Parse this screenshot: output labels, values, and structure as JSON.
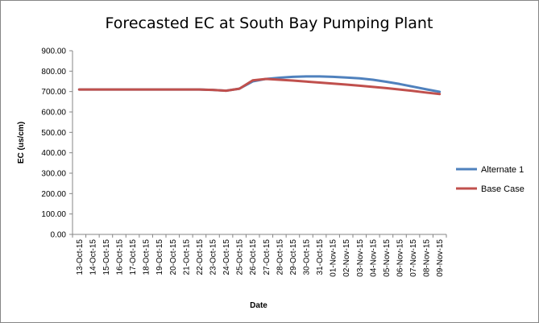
{
  "chart_data": {
    "type": "line",
    "title": "Forecasted EC at South Bay Pumping Plant",
    "xlabel": "Date",
    "ylabel": "EC (us/cm)",
    "ylim": [
      0,
      900
    ],
    "ytick_step": 100,
    "ytick_format": "0.00",
    "grid": false,
    "legend_position": "right",
    "categories": [
      "13-Oct-15",
      "14-Oct-15",
      "15-Oct-15",
      "16-Oct-15",
      "17-Oct-15",
      "18-Oct-15",
      "19-Oct-15",
      "20-Oct-15",
      "21-Oct-15",
      "22-Oct-15",
      "23-Oct-15",
      "24-Oct-15",
      "25-Oct-15",
      "26-Oct-15",
      "27-Oct-15",
      "28-Oct-15",
      "29-Oct-15",
      "30-Oct-15",
      "31-Oct-15",
      "01-Nov-15",
      "02-Nov-15",
      "03-Nov-15",
      "04-Nov-15",
      "05-Nov-15",
      "06-Nov-15",
      "07-Nov-15",
      "08-Nov-15",
      "09-Nov-15"
    ],
    "series": [
      {
        "name": "Alternate 1",
        "color": "#4F81BD",
        "values": [
          710,
          710,
          710,
          710,
          710,
          710,
          710,
          710,
          710,
          710,
          708,
          704,
          714,
          750,
          762,
          768,
          772,
          774,
          774,
          772,
          769,
          765,
          758,
          748,
          737,
          724,
          711,
          699
        ]
      },
      {
        "name": "Base Case",
        "color": "#C0504D",
        "values": [
          710,
          710,
          710,
          710,
          710,
          710,
          710,
          710,
          710,
          710,
          708,
          704,
          714,
          755,
          762,
          758,
          754,
          749,
          744,
          739,
          734,
          729,
          723,
          717,
          710,
          703,
          695,
          688
        ]
      }
    ]
  }
}
